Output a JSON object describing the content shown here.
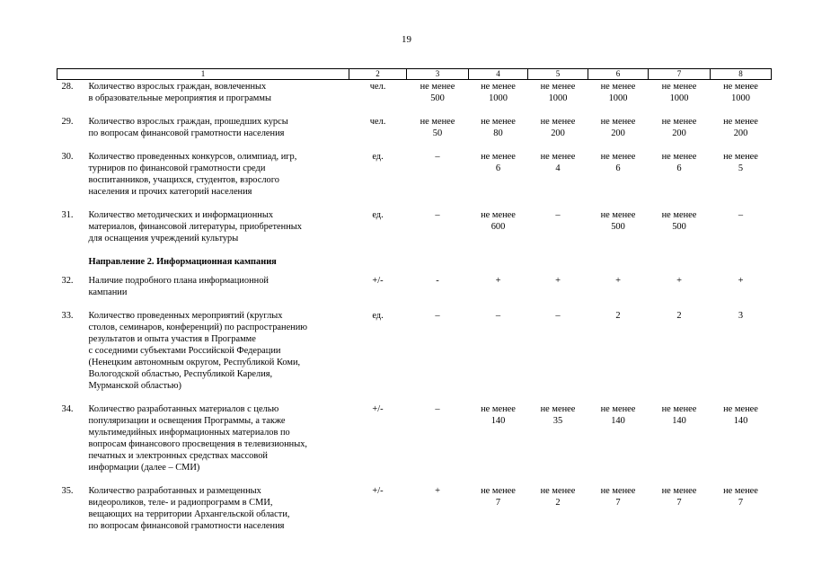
{
  "page_number": "19",
  "table": {
    "header": [
      "1",
      "2",
      "3",
      "4",
      "5",
      "6",
      "7",
      "8"
    ],
    "rows": [
      {
        "number": "28.",
        "description": [
          "Количество взрослых граждан, вовлеченных",
          "в образовательные мероприятия и программы"
        ],
        "unit": "чел.",
        "values": [
          [
            "не менее",
            "500"
          ],
          [
            "не менее",
            "1000"
          ],
          [
            "не менее",
            "1000"
          ],
          [
            "не менее",
            "1000"
          ],
          [
            "не менее",
            "1000"
          ],
          [
            "не менее",
            "1000"
          ]
        ]
      },
      {
        "number": "29.",
        "description": [
          "Количество взрослых граждан, прошедших курсы",
          "по вопросам финансовой грамотности населения"
        ],
        "unit": "чел.",
        "values": [
          [
            "не менее",
            "50"
          ],
          [
            "не менее",
            "80"
          ],
          [
            "не менее",
            "200"
          ],
          [
            "не менее",
            "200"
          ],
          [
            "не менее",
            "200"
          ],
          [
            "не менее",
            "200"
          ]
        ]
      },
      {
        "number": "30.",
        "description": [
          "Количество проведенных конкурсов, олимпиад, игр,",
          "турниров по финансовой грамотности среди",
          "воспитанников, учащихся, студентов, взрослого",
          "населения и прочих категорий населения"
        ],
        "unit": "ед.",
        "values": [
          [
            "–"
          ],
          [
            "не менее",
            "6"
          ],
          [
            "не менее",
            "4"
          ],
          [
            "не менее",
            "6"
          ],
          [
            "не менее",
            "6"
          ],
          [
            "не менее",
            "5"
          ]
        ]
      },
      {
        "number": "31.",
        "description": [
          "Количество методических и информационных",
          "материалов, финансовой литературы, приобретенных",
          "для оснащения учреждений культуры"
        ],
        "unit": "ед.",
        "values": [
          [
            "–"
          ],
          [
            "не менее",
            "600"
          ],
          [
            "–"
          ],
          [
            "не менее",
            "500"
          ],
          [
            "не менее",
            "500"
          ],
          [
            "–"
          ]
        ]
      },
      {
        "section": "Направление 2. Информационная кампания"
      },
      {
        "number": "32.",
        "description": [
          "Наличие подробного плана информационной",
          "кампании"
        ],
        "unit": "+/-",
        "values": [
          [
            "-"
          ],
          [
            "+"
          ],
          [
            "+"
          ],
          [
            "+"
          ],
          [
            "+"
          ],
          [
            "+"
          ]
        ]
      },
      {
        "number": "33.",
        "description": [
          "Количество проведенных мероприятий (круглых",
          "столов, семинаров, конференций) по распространению",
          "результатов и опыта участия в Программе",
          "с соседними субъектами Российской Федерации",
          "(Ненецким автономным округом, Республикой Коми,",
          "Вологодской областью, Республикой Карелия,",
          "Мурманской областью)"
        ],
        "unit": "ед.",
        "values": [
          [
            "–"
          ],
          [
            "–"
          ],
          [
            "–"
          ],
          [
            "2"
          ],
          [
            "2"
          ],
          [
            "3"
          ]
        ]
      },
      {
        "number": "34.",
        "description": [
          "Количество разработанных материалов с целью",
          "популяризации и освещения Программы, а также",
          "мультимедийных информационных материалов по",
          "вопросам финансового просвещения в телевизионных,",
          "печатных и электронных средствах массовой",
          "информации (далее – СМИ)"
        ],
        "unit": "+/-",
        "values": [
          [
            "–"
          ],
          [
            "не менее",
            "140"
          ],
          [
            "не менее",
            "35"
          ],
          [
            "не менее",
            "140"
          ],
          [
            "не менее",
            "140"
          ],
          [
            "не менее",
            "140"
          ]
        ]
      },
      {
        "number": "35.",
        "description": [
          "Количество разработанных и размещенных",
          "видеороликов,  теле- и радиопрограмм в СМИ,",
          "вещающих на территории Архангельской области,",
          "по вопросам финансовой грамотности населения"
        ],
        "unit": "+/-",
        "values": [
          [
            "+"
          ],
          [
            "не менее",
            "7"
          ],
          [
            "не менее",
            "2"
          ],
          [
            "не менее",
            "7"
          ],
          [
            "не менее",
            "7"
          ],
          [
            "не менее",
            "7"
          ]
        ]
      }
    ]
  }
}
